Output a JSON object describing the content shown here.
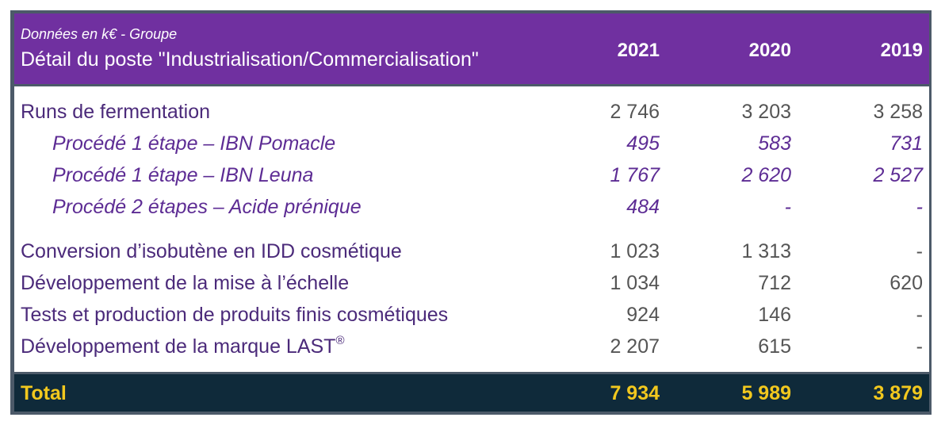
{
  "header": {
    "subtitle": "Données en k€ - Groupe",
    "title": "Détail du poste \"Industrialisation/Commercialisation\"",
    "years": [
      "2021",
      "2020",
      "2019"
    ]
  },
  "rows": [
    {
      "label": "Runs de fermentation",
      "v2021": "2 746",
      "v2020": "3 203",
      "v2019": "3 258"
    },
    {
      "label": "Procédé 1 étape – IBN Pomacle",
      "v2021": "495",
      "v2020": "583",
      "v2019": "731"
    },
    {
      "label": "Procédé 1 étape – IBN Leuna",
      "v2021": "1 767",
      "v2020": "2 620",
      "v2019": "2 527"
    },
    {
      "label": "Procédé 2 étapes – Acide prénique",
      "v2021": "484",
      "v2020": "-",
      "v2019": "-"
    },
    {
      "label": "Conversion d’isobutène en IDD cosmétique",
      "v2021": "1 023",
      "v2020": "1 313",
      "v2019": "-"
    },
    {
      "label": "Développement de la mise à l’échelle",
      "v2021": "1 034",
      "v2020": "712",
      "v2019": "620"
    },
    {
      "label": "Tests et production de produits finis cosmétiques",
      "v2021": "924",
      "v2020": "146",
      "v2019": "-"
    },
    {
      "label": "Développement de la marque LAST",
      "label_sup": "®",
      "v2021": "2 207",
      "v2020": "615",
      "v2019": "-"
    }
  ],
  "total": {
    "label": "Total",
    "v2021": "7 934",
    "v2020": "5 989",
    "v2019": "3 879"
  },
  "colors": {
    "header_bg": "#7030a0",
    "total_bg": "#0f2a3a",
    "total_text": "#f2c81e",
    "frame": "#4c5a69"
  }
}
